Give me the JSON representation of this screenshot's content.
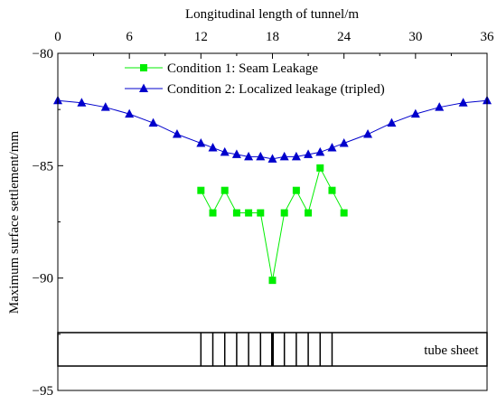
{
  "chart_data": {
    "type": "line",
    "xlabel": "Longitudinal length of tunnel/m",
    "ylabel": "Maximum surface settlement/mm",
    "xlim": [
      0,
      36
    ],
    "ylim": [
      -95,
      -80
    ],
    "x_ticks": [
      0,
      6,
      12,
      18,
      24,
      30,
      36
    ],
    "y_ticks": [
      -80,
      -85,
      -90,
      -95
    ],
    "x_axis_position": "top",
    "grid": false,
    "legend_placement": "top-center",
    "series": [
      {
        "name": "Condition 1: Seam Leakage",
        "color": "#00ee00",
        "marker": "square",
        "x": [
          12,
          13,
          14,
          15,
          16,
          17,
          18,
          19,
          20,
          21,
          22,
          23,
          24
        ],
        "y": [
          -86.1,
          -87.1,
          -86.1,
          -87.1,
          -87.1,
          -87.1,
          -90.1,
          -87.1,
          -86.1,
          -87.1,
          -85.1,
          -86.1,
          -87.1
        ]
      },
      {
        "name": "Condition 2: Localized leakage (tripled)",
        "color": "#0000cc",
        "marker": "triangle",
        "x": [
          0,
          2,
          4,
          6,
          8,
          10,
          12,
          13,
          14,
          15,
          16,
          17,
          18,
          19,
          20,
          21,
          22,
          23,
          24,
          26,
          28,
          30,
          32,
          34,
          36
        ],
        "y": [
          -82.1,
          -82.2,
          -82.4,
          -82.7,
          -83.1,
          -83.6,
          -84.0,
          -84.2,
          -84.4,
          -84.5,
          -84.6,
          -84.6,
          -84.7,
          -84.6,
          -84.6,
          -84.5,
          -84.4,
          -84.2,
          -84.0,
          -83.6,
          -83.1,
          -82.7,
          -82.4,
          -82.2,
          -82.1
        ]
      }
    ],
    "tube_sheet": {
      "label": "tube sheet",
      "start": 0,
      "end": 36,
      "segment_lines": [
        12,
        13,
        14,
        15,
        16,
        17,
        18,
        19,
        20,
        21,
        22,
        23
      ],
      "bold_line": 18
    }
  }
}
